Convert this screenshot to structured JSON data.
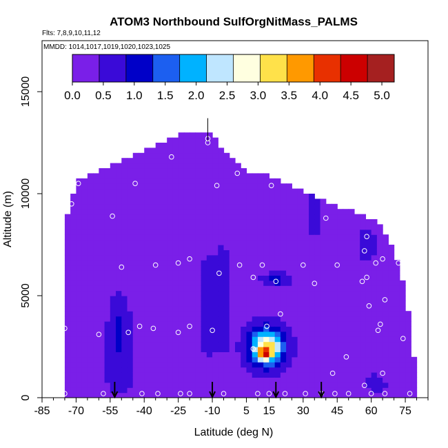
{
  "chart_data": {
    "type": "heatmap",
    "title": "ATOM3 Northbound SulfOrgNitMass_PALMS",
    "flights_note": "Flts: 7,8,9,10,11,12",
    "dates_note": "MMDD: 1014,1017,1019,1020,1023,1025",
    "xlabel": "Latitude (deg N)",
    "ylabel": "Altitude (m)",
    "xlim": [
      -85,
      85
    ],
    "ylim": [
      0,
      17500
    ],
    "xticks": [
      -85,
      -70,
      -55,
      -40,
      -25,
      -10,
      5,
      15,
      30,
      45,
      60,
      75
    ],
    "yticks": [
      0,
      5000,
      10000,
      15000
    ],
    "colorbar": {
      "range": [
        0,
        5.2
      ],
      "ticks": [
        "0.0",
        "0.5",
        "1.0",
        "1.5",
        "2.0",
        "2.5",
        "3.0",
        "3.5",
        "4.0",
        "4.5",
        "5.0"
      ],
      "colors": [
        "#7a1fe8",
        "#3a0ad8",
        "#0000c8",
        "#1c5ff0",
        "#00b2ff",
        "#bfe6ff",
        "#ffffe0",
        "#ffe14a",
        "#ff9900",
        "#e83000",
        "#cc0000",
        "#a52020"
      ]
    },
    "background_value": 0.2,
    "domain_envelope": [
      [
        -75,
        8500
      ],
      [
        -70,
        10500
      ],
      [
        -60,
        11000
      ],
      [
        -50,
        11500
      ],
      [
        -40,
        12000
      ],
      [
        -30,
        12500
      ],
      [
        -20,
        13000
      ],
      [
        -12,
        13000
      ],
      [
        -5,
        12000
      ],
      [
        5,
        11000
      ],
      [
        15,
        10800
      ],
      [
        25,
        10300
      ],
      [
        35,
        9800
      ],
      [
        45,
        9300
      ],
      [
        55,
        8900
      ],
      [
        65,
        8300
      ],
      [
        72,
        6500
      ],
      [
        75,
        5000
      ],
      [
        78,
        3000
      ],
      [
        80,
        0
      ]
    ],
    "features": [
      {
        "lat": -51,
        "alt": 3200,
        "sx": 5,
        "sy": 1800,
        "value": 0.8
      },
      {
        "lat": -51,
        "alt": 1000,
        "sx": 7,
        "sy": 900,
        "value": 0.4
      },
      {
        "lat": -12,
        "alt": 4500,
        "sx": 4,
        "sy": 2800,
        "value": 0.5
      },
      {
        "lat": -5,
        "alt": 5000,
        "sx": 4,
        "sy": 3500,
        "value": 0.4
      },
      {
        "lat": 18,
        "alt": 5800,
        "sx": 6,
        "sy": 350,
        "value": 0.9
      },
      {
        "lat": 35,
        "alt": 9000,
        "sx": 5,
        "sy": 1500,
        "value": 0.4
      },
      {
        "lat": 58,
        "alt": 7500,
        "sx": 6,
        "sy": 1200,
        "value": 0.35
      },
      {
        "lat": 62,
        "alt": 700,
        "sx": 5,
        "sy": 500,
        "value": 0.5
      },
      {
        "lat": 14,
        "alt": 2500,
        "sx": 9,
        "sy": 1100,
        "value": 1.6
      },
      {
        "lat": 14,
        "alt": 2500,
        "sx": 6,
        "sy": 700,
        "value": 1.6
      },
      {
        "lat": 13,
        "alt": 2150,
        "sx": 3,
        "sy": 280,
        "value": 2.0
      }
    ],
    "sample_points": [
      [
        -75,
        3400
      ],
      [
        -75,
        200
      ],
      [
        -72,
        9500
      ],
      [
        -69,
        10500
      ],
      [
        -60,
        3100
      ],
      [
        -58,
        200
      ],
      [
        -54,
        8900
      ],
      [
        -50,
        6400
      ],
      [
        -47,
        3200
      ],
      [
        -44,
        10500
      ],
      [
        -42,
        3500
      ],
      [
        -41,
        200
      ],
      [
        -36,
        3400
      ],
      [
        -35,
        6500
      ],
      [
        -34,
        200
      ],
      [
        -28,
        11800
      ],
      [
        -25,
        6600
      ],
      [
        -25,
        3200
      ],
      [
        -24,
        200
      ],
      [
        -20,
        6800
      ],
      [
        -20,
        3500
      ],
      [
        -20,
        200
      ],
      [
        -12,
        12500
      ],
      [
        -10,
        3300
      ],
      [
        -8,
        10400
      ],
      [
        -7,
        6100
      ],
      [
        -5,
        200
      ],
      [
        1,
        11000
      ],
      [
        2,
        6500
      ],
      [
        8,
        5900
      ],
      [
        8,
        2400
      ],
      [
        10,
        200
      ],
      [
        12,
        6500
      ],
      [
        14,
        3500
      ],
      [
        15,
        200
      ],
      [
        16,
        10400
      ],
      [
        18,
        5700
      ],
      [
        20,
        4100
      ],
      [
        22,
        200
      ],
      [
        30,
        6500
      ],
      [
        31,
        200
      ],
      [
        35,
        5600
      ],
      [
        38,
        200
      ],
      [
        40,
        8800
      ],
      [
        43,
        1200
      ],
      [
        44,
        200
      ],
      [
        45,
        6500
      ],
      [
        49,
        2000
      ],
      [
        50,
        200
      ],
      [
        56,
        5700
      ],
      [
        57,
        600
      ],
      [
        57,
        7200
      ],
      [
        58,
        5900
      ],
      [
        58,
        7900
      ],
      [
        59,
        4500
      ],
      [
        60,
        200
      ],
      [
        62,
        6600
      ],
      [
        63,
        3300
      ],
      [
        64,
        3600
      ],
      [
        65,
        6800
      ],
      [
        65,
        1200
      ],
      [
        66,
        4800
      ],
      [
        66,
        200
      ],
      [
        67,
        8500
      ],
      [
        72,
        6600
      ],
      [
        74,
        2900
      ],
      [
        77,
        200
      ],
      [
        -12,
        12700
      ]
    ],
    "arrows_latitude": [
      -53,
      -10,
      18,
      38
    ]
  }
}
